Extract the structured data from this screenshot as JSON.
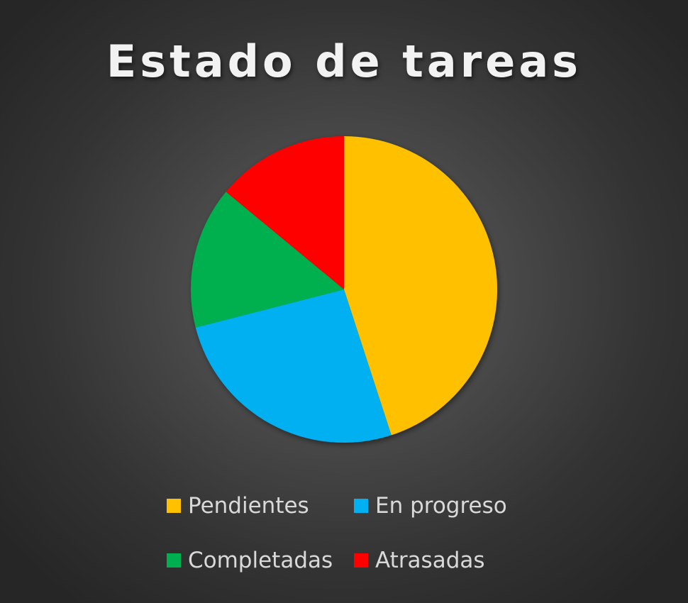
{
  "chart_data": {
    "type": "pie",
    "title": "Estado de tareas",
    "categories": [
      "Pendientes",
      "En progreso",
      "Completadas",
      "Atrasadas"
    ],
    "values": [
      45,
      26,
      15,
      14
    ],
    "colors": [
      "#FFC000",
      "#00B0F0",
      "#00B050",
      "#FF0000"
    ],
    "start_angle_deg": 0,
    "direction": "clockwise",
    "legend_position": "bottom"
  }
}
